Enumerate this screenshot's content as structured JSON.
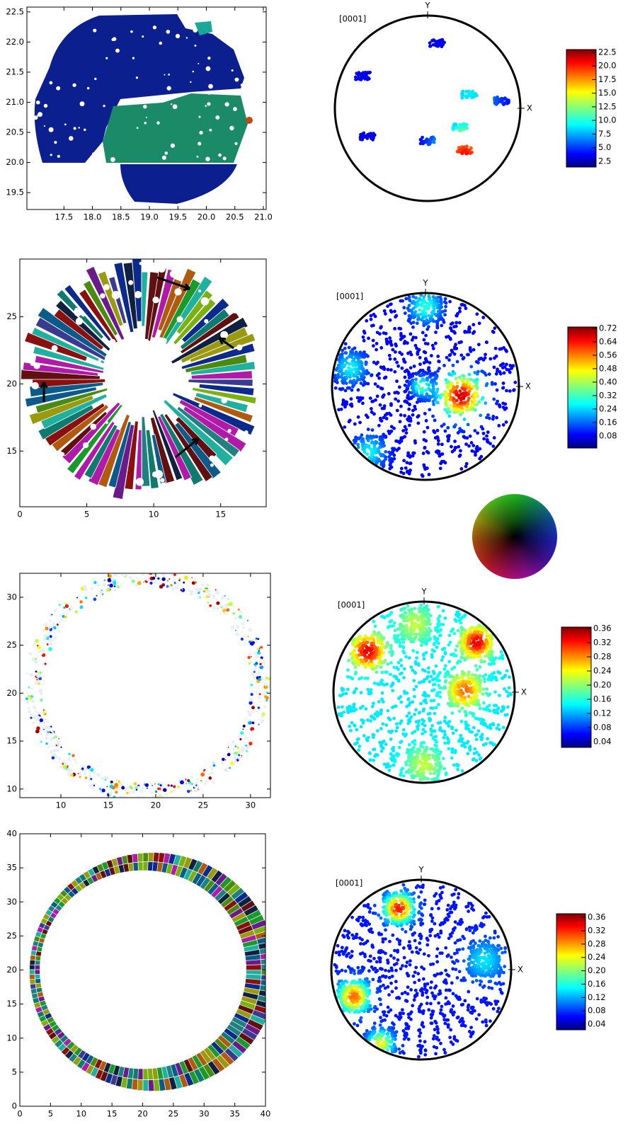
{
  "panels": [
    {
      "map": {
        "xlim": [
          16.85,
          21.05
        ],
        "ylim": [
          19.22,
          22.58
        ],
        "xticks": [
          17.5,
          {
            "value": 18,
            "label": "18.0"
          },
          18.5,
          {
            "value": 19,
            "label": "19.0"
          },
          19.5,
          {
            "value": 20,
            "label": "20.0"
          },
          20.5,
          {
            "value": 21,
            "label": "21.0"
          }
        ],
        "yticks": [
          19.5,
          {
            "value": 20,
            "label": "20.0"
          },
          20.5,
          {
            "value": 21,
            "label": "21.0"
          },
          21.5,
          {
            "value": 22,
            "label": "22.0"
          },
          22.5
        ]
      },
      "pole_figure": {
        "pole": "[0001]",
        "y_axis": "Y",
        "x_axis": "X",
        "colorbar": {
          "lim": [
            1.45,
            23.0
          ],
          "ticks": [
            2.5,
            {
              "value": 5,
              "label": "5.0"
            },
            7.5,
            {
              "value": 10,
              "label": "10.0"
            },
            12.5,
            {
              "value": 15,
              "label": "15.0"
            },
            17.5,
            {
              "value": 20,
              "label": "20.0"
            },
            22.5
          ]
        }
      }
    },
    {
      "map": {
        "xlim": [
          0,
          18.4
        ],
        "ylim": [
          10.85,
          29.3
        ],
        "xticks": [
          0,
          5,
          10,
          15
        ],
        "yticks": [
          15,
          20,
          25
        ]
      },
      "pole_figure": {
        "pole": "[0001]",
        "y_axis": "Y",
        "x_axis": "X",
        "colorbar": {
          "lim": [
            0.008,
            0.728
          ],
          "ticks": [
            0.08,
            0.16,
            0.24,
            0.32,
            {
              "value": 0.4,
              "label": "0.40"
            },
            0.48,
            0.56,
            0.64,
            0.72
          ]
        }
      }
    },
    {
      "map": {
        "xlim": [
          5.67,
          32.1
        ],
        "ylim": [
          9.1,
          32.5
        ],
        "xticks": [
          10,
          15,
          20,
          25,
          30
        ],
        "yticks": [
          10,
          15,
          20,
          25,
          30
        ]
      },
      "pole_figure": {
        "pole": "[0001]",
        "y_axis": "Y",
        "x_axis": "X",
        "colorbar": {
          "lim": [
            0.024,
            0.364
          ],
          "ticks": [
            0.04,
            0.08,
            0.12,
            0.16,
            {
              "value": 0.2,
              "label": "0.20"
            },
            0.24,
            0.28,
            0.32,
            0.36
          ]
        }
      }
    },
    {
      "map": {
        "xlim": [
          0,
          40
        ],
        "ylim": [
          0,
          40
        ],
        "xticks": [
          0,
          5,
          10,
          15,
          20,
          25,
          30,
          35,
          40
        ],
        "yticks": [
          0,
          5,
          10,
          15,
          20,
          25,
          30,
          35,
          40
        ]
      },
      "pole_figure": {
        "pole": "[0001]",
        "y_axis": "Y",
        "x_axis": "X",
        "colorbar": {
          "lim": [
            0.023,
            0.371
          ],
          "ticks": [
            0.04,
            0.08,
            0.12,
            0.16,
            {
              "value": 0.2,
              "label": "0.20"
            },
            0.24,
            0.28,
            0.32,
            0.36
          ]
        }
      }
    }
  ]
}
